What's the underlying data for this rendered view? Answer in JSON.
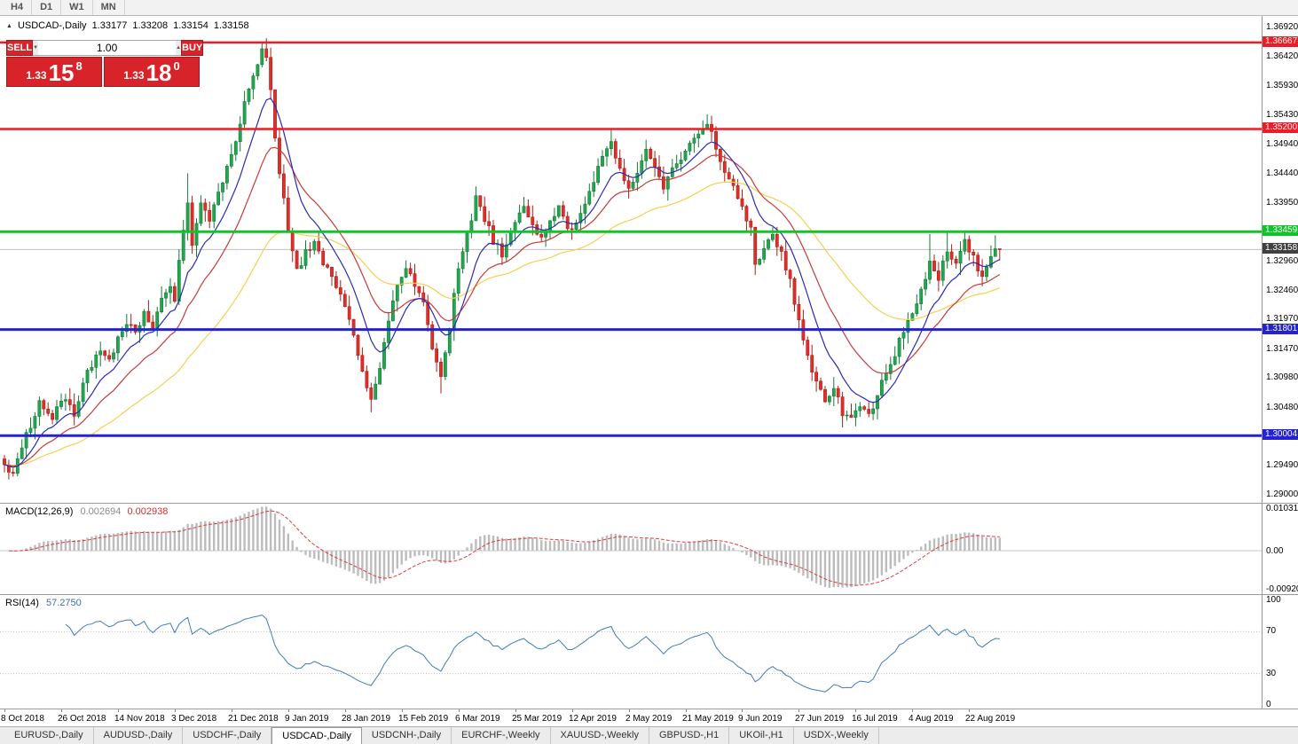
{
  "toolbar": {
    "timeframes": [
      "H4",
      "D1",
      "W1",
      "MN"
    ]
  },
  "icons": {
    "header_arrow": "▲",
    "spin_down": "▼",
    "spin_up": "▲"
  },
  "chart": {
    "title": "USDCAD-,Daily",
    "open": "1.33177",
    "high": "1.33208",
    "low": "1.33154",
    "close": "1.33158"
  },
  "trade": {
    "sell_label": "SELL",
    "buy_label": "BUY",
    "volume": "1.00",
    "bid": {
      "prefix": "1.33",
      "pips": "15",
      "point": "8"
    },
    "ask": {
      "prefix": "1.33",
      "pips": "18",
      "point": "0"
    }
  },
  "price_axis": {
    "ticks": [
      "1.36920",
      "1.36420",
      "1.35930",
      "1.35430",
      "1.34940",
      "1.34440",
      "1.33950",
      "1.32960",
      "1.32460",
      "1.31970",
      "1.31470",
      "1.30980",
      "1.30480",
      "1.29490",
      "1.29000"
    ],
    "current": "1.33158"
  },
  "macd": {
    "label": "MACD(12,26,9)",
    "value_main": "0.002694",
    "value_signal": "0.002938",
    "axis_labels": [
      "0.010311",
      "0.00",
      "-0.0092030"
    ]
  },
  "rsi": {
    "label": "RSI(14)",
    "value": "57.2750",
    "axis_labels": [
      "100",
      "70",
      "30",
      "0"
    ]
  },
  "tabs": [
    {
      "label": "EURUSD-,Daily",
      "active": false
    },
    {
      "label": "AUDUSD-,Daily",
      "active": false
    },
    {
      "label": "USDCHF-,Daily",
      "active": false
    },
    {
      "label": "USDCAD-,Daily",
      "active": true
    },
    {
      "label": "USDCNH-,Daily",
      "active": false
    },
    {
      "label": "EURCHF-,Weekly",
      "active": false
    },
    {
      "label": "XAUUSD-,Weekly",
      "active": false
    },
    {
      "label": "GBPUSD-,H1",
      "active": false
    },
    {
      "label": "UKOil-,H1",
      "active": false
    },
    {
      "label": "USDX-,Weekly",
      "active": false
    }
  ],
  "chart_data": {
    "type": "candlestick",
    "symbol": "USDCAD",
    "timeframe": "Daily",
    "bars": 229,
    "last_ohlc": {
      "open": 1.33177,
      "high": 1.33208,
      "low": 1.33154,
      "close": 1.33158
    },
    "current_price": 1.33158,
    "price_scale": {
      "max": 1.37116,
      "min": 1.28865
    },
    "colors": {
      "up": "#21a74e",
      "up_border": "#157a38",
      "down": "#e22e28",
      "down_border": "#a8201b"
    },
    "levels": [
      {
        "price": 1.36667,
        "label": "1.36667",
        "color": "#ee1c25",
        "width": 2.5
      },
      {
        "price": 1.352,
        "label": "1.35200",
        "color": "#ee1c25",
        "width": 2.5
      },
      {
        "price": 1.33459,
        "label": "1.33459",
        "color": "#12c42c",
        "width": 3
      },
      {
        "price": 1.31801,
        "label": "1.31801",
        "color": "#2323d4",
        "width": 3
      },
      {
        "price": 1.30004,
        "label": "1.30004",
        "color": "#2323d4",
        "width": 3
      }
    ],
    "moving_averages": [
      {
        "period": 10,
        "color": "#2a2ab4"
      },
      {
        "period": 21,
        "color": "#c93a3a"
      },
      {
        "period": 50,
        "color": "#f6cf4f"
      }
    ],
    "close_anchors": [
      [
        0,
        1.2955
      ],
      [
        2,
        1.2935
      ],
      [
        5,
        1.3
      ],
      [
        8,
        1.3055
      ],
      [
        11,
        1.3025
      ],
      [
        13,
        1.3065
      ],
      [
        16,
        1.304
      ],
      [
        18,
        1.309
      ],
      [
        20,
        1.312
      ],
      [
        22,
        1.315
      ],
      [
        24,
        1.313
      ],
      [
        26,
        1.3165
      ],
      [
        28,
        1.3195
      ],
      [
        30,
        1.317
      ],
      [
        32,
        1.321
      ],
      [
        34,
        1.3185
      ],
      [
        36,
        1.323
      ],
      [
        38,
        1.326
      ],
      [
        39,
        1.323
      ],
      [
        40,
        1.33
      ],
      [
        42,
        1.339
      ],
      [
        43,
        1.333
      ],
      [
        45,
        1.339
      ],
      [
        47,
        1.337
      ],
      [
        49,
        1.342
      ],
      [
        51,
        1.345
      ],
      [
        52,
        1.347
      ],
      [
        54,
        1.353
      ],
      [
        56,
        1.359
      ],
      [
        58,
        1.363
      ],
      [
        59,
        1.3655
      ],
      [
        60,
        1.364
      ],
      [
        61,
        1.358
      ],
      [
        62,
        1.35
      ],
      [
        63,
        1.345
      ],
      [
        64,
        1.3405
      ],
      [
        65,
        1.335
      ],
      [
        66,
        1.331
      ],
      [
        67,
        1.328
      ],
      [
        69,
        1.331
      ],
      [
        71,
        1.333
      ],
      [
        73,
        1.329
      ],
      [
        75,
        1.327
      ],
      [
        77,
        1.324
      ],
      [
        79,
        1.32
      ],
      [
        81,
        1.314
      ],
      [
        83,
        1.308
      ],
      [
        84,
        1.306
      ],
      [
        85,
        1.309
      ],
      [
        86,
        1.312
      ],
      [
        87,
        1.316
      ],
      [
        88,
        1.32
      ],
      [
        89,
        1.323
      ],
      [
        90,
        1.326
      ],
      [
        92,
        1.329
      ],
      [
        94,
        1.326
      ],
      [
        96,
        1.322
      ],
      [
        98,
        1.315
      ],
      [
        99,
        1.312
      ],
      [
        100,
        1.31
      ],
      [
        102,
        1.318
      ],
      [
        104,
        1.329
      ],
      [
        106,
        1.334
      ],
      [
        108,
        1.34
      ],
      [
        110,
        1.337
      ],
      [
        112,
        1.333
      ],
      [
        114,
        1.331
      ],
      [
        116,
        1.334
      ],
      [
        117,
        1.336
      ],
      [
        119,
        1.339
      ],
      [
        121,
        1.336
      ],
      [
        123,
        1.333
      ],
      [
        125,
        1.336
      ],
      [
        127,
        1.339
      ],
      [
        129,
        1.335
      ],
      [
        131,
        1.336
      ],
      [
        133,
        1.339
      ],
      [
        135,
        1.343
      ],
      [
        137,
        1.347
      ],
      [
        139,
        1.35
      ],
      [
        141,
        1.345
      ],
      [
        143,
        1.342
      ],
      [
        145,
        1.345
      ],
      [
        147,
        1.348
      ],
      [
        149,
        1.345
      ],
      [
        151,
        1.342
      ],
      [
        153,
        1.345
      ],
      [
        155,
        1.347
      ],
      [
        157,
        1.349
      ],
      [
        159,
        1.3515
      ],
      [
        161,
        1.353
      ],
      [
        163,
        1.349
      ],
      [
        165,
        1.345
      ],
      [
        167,
        1.342
      ],
      [
        169,
        1.339
      ],
      [
        171,
        1.335
      ],
      [
        172,
        1.329
      ],
      [
        174,
        1.332
      ],
      [
        176,
        1.334
      ],
      [
        178,
        1.331
      ],
      [
        180,
        1.326
      ],
      [
        182,
        1.319
      ],
      [
        184,
        1.313
      ],
      [
        186,
        1.309
      ],
      [
        188,
        1.306
      ],
      [
        190,
        1.3085
      ],
      [
        192,
        1.304
      ],
      [
        194,
        1.3025
      ],
      [
        196,
        1.3055
      ],
      [
        198,
        1.3035
      ],
      [
        200,
        1.307
      ],
      [
        202,
        1.311
      ],
      [
        204,
        1.314
      ],
      [
        206,
        1.318
      ],
      [
        208,
        1.321
      ],
      [
        210,
        1.325
      ],
      [
        212,
        1.329
      ],
      [
        214,
        1.327
      ],
      [
        216,
        1.331
      ],
      [
        218,
        1.329
      ],
      [
        220,
        1.333
      ],
      [
        222,
        1.33
      ],
      [
        224,
        1.327
      ],
      [
        226,
        1.331
      ],
      [
        228,
        1.33158
      ]
    ],
    "spikes": [
      {
        "i": 42,
        "high": 1.3445
      },
      {
        "i": 59,
        "high": 1.3666
      },
      {
        "i": 60,
        "high": 1.36667
      },
      {
        "i": 84,
        "low": 1.304
      },
      {
        "i": 100,
        "low": 1.3072
      },
      {
        "i": 139,
        "high": 1.3521
      },
      {
        "i": 161,
        "high": 1.3545
      },
      {
        "i": 195,
        "low": 1.3016
      },
      {
        "i": 212,
        "high": 1.3342
      },
      {
        "i": 216,
        "high": 1.3346
      },
      {
        "i": 220,
        "high": 1.3347
      },
      {
        "i": 227,
        "high": 1.334
      }
    ],
    "macd_indicator": {
      "fast": 12,
      "slow": 26,
      "signal": 9,
      "value": 0.002694,
      "signal_value": 0.002938,
      "axis": [
        0.010311,
        0,
        -0.009203
      ]
    },
    "rsi_indicator": {
      "period": 14,
      "value": 57.275,
      "levels": [
        70,
        30
      ],
      "axis": [
        100,
        70,
        30,
        0
      ]
    },
    "date_ticks": [
      [
        "8 Oct 2018",
        0
      ],
      [
        "26 Oct 2018",
        13
      ],
      [
        "14 Nov 2018",
        26
      ],
      [
        "3 Dec 2018",
        39
      ],
      [
        "21 Dec 2018",
        52
      ],
      [
        "9 Jan 2019",
        65
      ],
      [
        "28 Jan 2019",
        78
      ],
      [
        "15 Feb 2019",
        91
      ],
      [
        "6 Mar 2019",
        104
      ],
      [
        "25 Mar 2019",
        117
      ],
      [
        "12 Apr 2019",
        130
      ],
      [
        "2 May 2019",
        143
      ],
      [
        "21 May 2019",
        156
      ],
      [
        "9 Jun 2019",
        169
      ],
      [
        "27 Jun 2019",
        182
      ],
      [
        "16 Jul 2019",
        195
      ],
      [
        "4 Aug 2019",
        208
      ],
      [
        "22 Aug 2019",
        221
      ]
    ]
  }
}
